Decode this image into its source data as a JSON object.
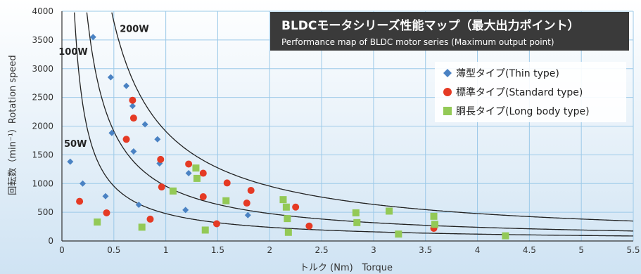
{
  "colors": {
    "grid": "#9cc9e8",
    "background_top": "#ffffff",
    "background_bottom": "#cfe3f3",
    "curve": "#222222",
    "banner": "#3a3a3a",
    "thin": "#4a82c3",
    "standard": "#e53a24",
    "long": "#93c956"
  },
  "banner": {
    "title": "BLDCモータシリーズ性能マップ（最大出力ポイント）",
    "subtitle": "Performance map of BLDC motor series (Maximum output point)"
  },
  "chart_data": {
    "type": "scatter",
    "xlabel": "トルク (Nm)　Torque",
    "ylabel": "回転数（min⁻¹）Rotation speed",
    "xlim": [
      0,
      5.5
    ],
    "ylim": [
      0,
      4000
    ],
    "x_ticks": [
      "0",
      "0.5",
      "1",
      "1.5",
      "2",
      "2.5",
      "3",
      "3.5",
      "4",
      "4.5",
      "5",
      "5.5"
    ],
    "y_ticks": [
      "0",
      "500",
      "1000",
      "1500",
      "2000",
      "2500",
      "3000",
      "3500",
      "4000"
    ],
    "grid": true,
    "legend_position": "top-right",
    "curves": [
      {
        "label": "200W",
        "power_w": 200
      },
      {
        "label": "100W",
        "power_w": 100
      },
      {
        "label": "50W",
        "power_w": 50
      }
    ],
    "series": [
      {
        "name": "薄型タイプ(Thin type)",
        "marker": "diamond",
        "points": [
          [
            0.08,
            1380
          ],
          [
            0.2,
            1000
          ],
          [
            0.3,
            3550
          ],
          [
            0.42,
            780
          ],
          [
            0.47,
            2850
          ],
          [
            0.48,
            1880
          ],
          [
            0.62,
            2700
          ],
          [
            0.68,
            2350
          ],
          [
            0.69,
            1560
          ],
          [
            0.74,
            630
          ],
          [
            0.8,
            2030
          ],
          [
            0.92,
            1770
          ],
          [
            0.94,
            1350
          ],
          [
            1.19,
            540
          ],
          [
            1.22,
            1180
          ],
          [
            1.79,
            450
          ]
        ]
      },
      {
        "name": "標準タイプ(Standard type)",
        "marker": "circle",
        "points": [
          [
            0.17,
            690
          ],
          [
            0.43,
            490
          ],
          [
            0.62,
            1770
          ],
          [
            0.68,
            2450
          ],
          [
            0.69,
            2140
          ],
          [
            0.85,
            380
          ],
          [
            0.95,
            1420
          ],
          [
            0.96,
            940
          ],
          [
            1.22,
            1340
          ],
          [
            1.36,
            1180
          ],
          [
            1.36,
            770
          ],
          [
            1.49,
            300
          ],
          [
            1.59,
            1010
          ],
          [
            1.78,
            660
          ],
          [
            1.82,
            880
          ],
          [
            2.25,
            590
          ],
          [
            2.38,
            260
          ],
          [
            3.58,
            220
          ]
        ]
      },
      {
        "name": "胴長タイプ(Long body type)",
        "marker": "square",
        "points": [
          [
            0.34,
            330
          ],
          [
            0.77,
            240
          ],
          [
            1.07,
            870
          ],
          [
            1.29,
            1270
          ],
          [
            1.3,
            1090
          ],
          [
            1.38,
            190
          ],
          [
            1.58,
            700
          ],
          [
            2.13,
            720
          ],
          [
            2.16,
            590
          ],
          [
            2.17,
            390
          ],
          [
            2.18,
            150
          ],
          [
            2.83,
            490
          ],
          [
            2.84,
            320
          ],
          [
            3.15,
            520
          ],
          [
            3.24,
            120
          ],
          [
            3.58,
            430
          ],
          [
            3.59,
            290
          ],
          [
            4.27,
            90
          ]
        ]
      }
    ]
  }
}
